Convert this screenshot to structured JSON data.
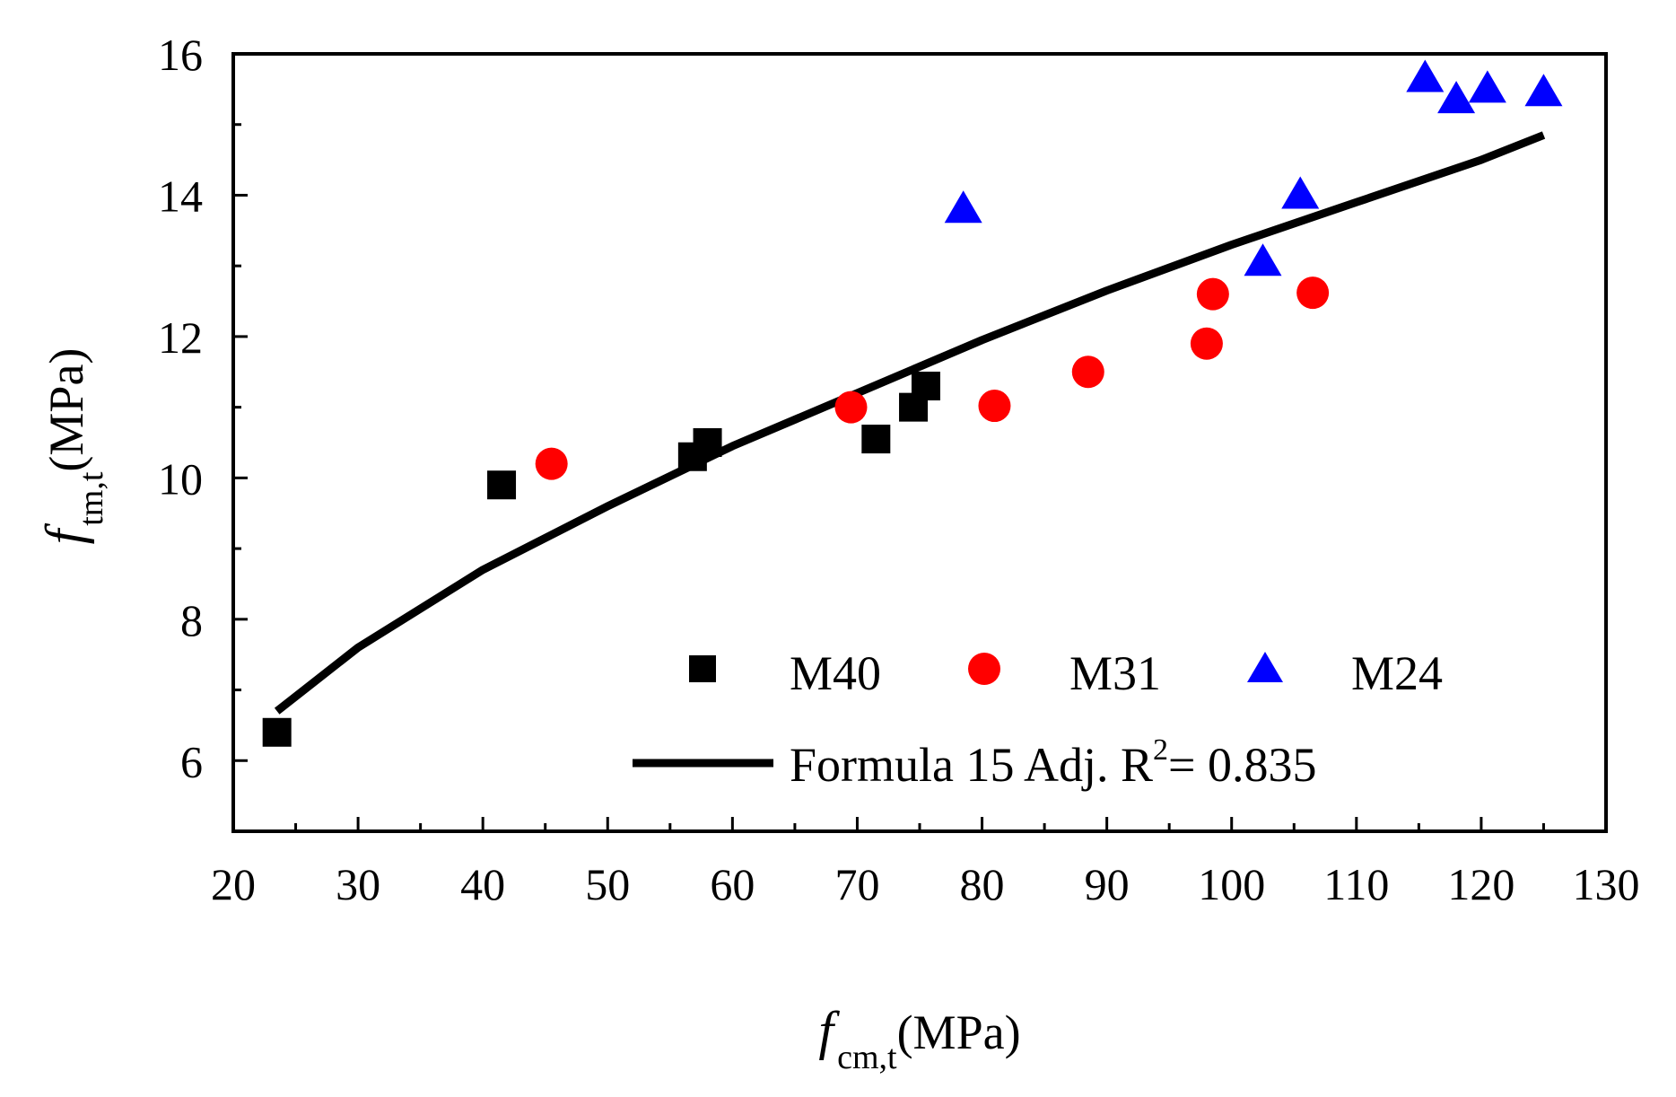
{
  "chart_data": {
    "type": "scatter",
    "title": "",
    "xlabel": {
      "var": "f",
      "sub": "cm,t",
      "unit": "(MPa)"
    },
    "ylabel": {
      "var": "f",
      "sub": "tm,t",
      "unit": "(MPa)"
    },
    "xlim": [
      20,
      130
    ],
    "ylim": [
      5,
      16
    ],
    "xticks": [
      20,
      30,
      40,
      50,
      60,
      70,
      80,
      90,
      100,
      110,
      120,
      130
    ],
    "yticks": [
      6,
      8,
      10,
      12,
      14,
      16
    ],
    "grid": false,
    "legend_position": "bottom-right",
    "series": [
      {
        "name": "M40",
        "marker": "square",
        "color": "#000000",
        "points": [
          [
            23.5,
            6.4
          ],
          [
            41.5,
            9.9
          ],
          [
            56.8,
            10.3
          ],
          [
            58.0,
            10.5
          ],
          [
            71.5,
            10.55
          ],
          [
            74.5,
            11.0
          ],
          [
            75.5,
            11.3
          ]
        ]
      },
      {
        "name": "M31",
        "marker": "circle",
        "color": "#ff0000",
        "points": [
          [
            45.5,
            10.2
          ],
          [
            69.5,
            11.0
          ],
          [
            81.0,
            11.02
          ],
          [
            88.5,
            11.5
          ],
          [
            98.0,
            11.9
          ],
          [
            98.5,
            12.6
          ],
          [
            106.5,
            12.62
          ]
        ]
      },
      {
        "name": "M24",
        "marker": "triangle",
        "color": "#0000ff",
        "points": [
          [
            78.5,
            13.8
          ],
          [
            102.5,
            13.05
          ],
          [
            105.5,
            14.0
          ],
          [
            115.5,
            15.65
          ],
          [
            118.0,
            15.35
          ],
          [
            120.5,
            15.5
          ],
          [
            125.0,
            15.45
          ]
        ]
      }
    ],
    "fit": {
      "name": "Formula 15",
      "label_prefix": "Formula 15  Adj. R",
      "r2_power": "2",
      "label_suffix": "= 0.835",
      "x_range": [
        23.5,
        125.0
      ],
      "curve_points": [
        [
          23.5,
          6.7
        ],
        [
          30,
          7.6
        ],
        [
          40,
          8.7
        ],
        [
          50,
          9.6
        ],
        [
          60,
          10.45
        ],
        [
          70,
          11.2
        ],
        [
          80,
          11.95
        ],
        [
          90,
          12.65
        ],
        [
          100,
          13.3
        ],
        [
          110,
          13.9
        ],
        [
          120,
          14.5
        ],
        [
          125,
          14.85
        ]
      ],
      "color": "#000000"
    }
  }
}
